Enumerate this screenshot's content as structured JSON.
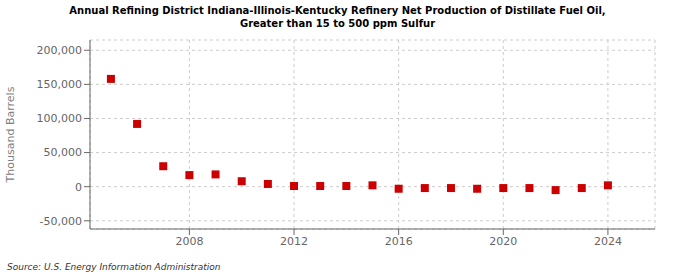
{
  "chart_data": {
    "type": "scatter",
    "title": "Annual Refining District Indiana-Illinois-Kentucky Refinery Net Production of Distillate Fuel Oil,\nGreater than 15 to 500 ppm Sulfur",
    "ylabel": "Thousand Barrels",
    "annotations": [
      "Source: U.S. Energy Information Administration"
    ],
    "x": [
      2005,
      2006,
      2007,
      2008,
      2009,
      2010,
      2011,
      2012,
      2013,
      2014,
      2015,
      2016,
      2017,
      2018,
      2019,
      2020,
      2021,
      2022,
      2023,
      2024
    ],
    "values": [
      158000,
      92000,
      30000,
      17000,
      18000,
      8000,
      4000,
      1000,
      1000,
      1000,
      2000,
      -3000,
      -2000,
      -2000,
      -3000,
      -2000,
      -2000,
      -5000,
      -2000,
      2000
    ],
    "color": "#cc0000",
    "marker": "square",
    "xlim": [
      2004.2,
      2025.8
    ],
    "xticks": [
      2008,
      2012,
      2016,
      2020,
      2024
    ],
    "ylim": [
      -62000,
      215000
    ],
    "yticks": [
      {
        "value": -50000,
        "label": "-50,000"
      },
      0,
      {
        "value": 50000,
        "label": "50,000"
      },
      {
        "value": 100000,
        "label": "100,000"
      },
      {
        "value": 150000,
        "label": "150,000"
      },
      {
        "value": 200000,
        "label": "200,000"
      }
    ],
    "grid": true
  }
}
